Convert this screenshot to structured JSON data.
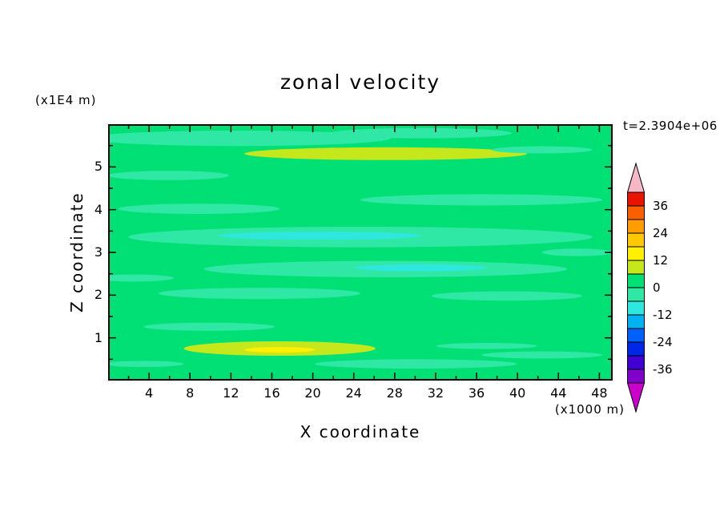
{
  "chart_data": {
    "type": "heatmap",
    "title": "zonal velocity",
    "xlabel": "X coordinate",
    "ylabel": "Z coordinate",
    "x_unit": "(x1000 m)",
    "y_unit": "(x1E4 m)",
    "time": "t=2.3904e+06",
    "xlim": [
      0,
      49.3
    ],
    "ylim": [
      0,
      6
    ],
    "x_ticks": [
      4,
      8,
      12,
      16,
      20,
      24,
      28,
      32,
      36,
      40,
      44,
      48
    ],
    "y_ticks": [
      1,
      2,
      3,
      4,
      5
    ],
    "x_minor_step": 2,
    "y_minor_step": 0.5,
    "grid": false,
    "legend_position": "right-colorbar",
    "base_color": "#00e074",
    "colorbar": {
      "over_color": "#f5b8c4",
      "under_color": "#cc00cc",
      "labels": [
        36,
        24,
        12,
        0,
        -12,
        -24,
        -36
      ],
      "segments": [
        {
          "from": 36,
          "to": 42,
          "color": "#e81400"
        },
        {
          "from": 30,
          "to": 36,
          "color": "#fa5f00"
        },
        {
          "from": 24,
          "to": 30,
          "color": "#ff9c00"
        },
        {
          "from": 18,
          "to": 24,
          "color": "#ffc800"
        },
        {
          "from": 12,
          "to": 18,
          "color": "#fef000"
        },
        {
          "from": 6,
          "to": 12,
          "color": "#c4e81c"
        },
        {
          "from": 0,
          "to": 6,
          "color": "#00e074"
        },
        {
          "from": -6,
          "to": 0,
          "color": "#30e8a6"
        },
        {
          "from": -12,
          "to": -6,
          "color": "#2ee8e0"
        },
        {
          "from": -18,
          "to": -12,
          "color": "#00b2f2"
        },
        {
          "from": -24,
          "to": -18,
          "color": "#0060fa"
        },
        {
          "from": -30,
          "to": -24,
          "color": "#0026e8"
        },
        {
          "from": -36,
          "to": -30,
          "color": "#4000d4"
        },
        {
          "from": -42,
          "to": -36,
          "color": "#8000cc"
        }
      ]
    },
    "streaks": [
      {
        "x": 0.26,
        "y": 0.055,
        "rx": 0.3,
        "ry": 0.03,
        "v": -3
      },
      {
        "x": 0.62,
        "y": 0.035,
        "rx": 0.18,
        "ry": 0.02,
        "v": -3
      },
      {
        "x": 0.55,
        "y": 0.115,
        "rx": 0.28,
        "ry": 0.025,
        "v": 9
      },
      {
        "x": 0.86,
        "y": 0.1,
        "rx": 0.1,
        "ry": 0.014,
        "v": -3
      },
      {
        "x": 0.12,
        "y": 0.2,
        "rx": 0.12,
        "ry": 0.018,
        "v": -3
      },
      {
        "x": 0.74,
        "y": 0.295,
        "rx": 0.24,
        "ry": 0.022,
        "v": -3
      },
      {
        "x": 0.18,
        "y": 0.33,
        "rx": 0.16,
        "ry": 0.02,
        "v": -3
      },
      {
        "x": 0.5,
        "y": 0.44,
        "rx": 0.46,
        "ry": 0.04,
        "v": -3
      },
      {
        "x": 0.42,
        "y": 0.435,
        "rx": 0.2,
        "ry": 0.016,
        "v": -9
      },
      {
        "x": 0.55,
        "y": 0.565,
        "rx": 0.36,
        "ry": 0.032,
        "v": -3
      },
      {
        "x": 0.62,
        "y": 0.56,
        "rx": 0.13,
        "ry": 0.013,
        "v": -9
      },
      {
        "x": 0.3,
        "y": 0.66,
        "rx": 0.2,
        "ry": 0.022,
        "v": -3
      },
      {
        "x": 0.79,
        "y": 0.67,
        "rx": 0.15,
        "ry": 0.018,
        "v": -3
      },
      {
        "x": 0.93,
        "y": 0.5,
        "rx": 0.07,
        "ry": 0.015,
        "v": -3
      },
      {
        "x": 0.05,
        "y": 0.6,
        "rx": 0.08,
        "ry": 0.014,
        "v": -3
      },
      {
        "x": 0.2,
        "y": 0.79,
        "rx": 0.13,
        "ry": 0.016,
        "v": -3
      },
      {
        "x": 0.34,
        "y": 0.875,
        "rx": 0.19,
        "ry": 0.028,
        "v": 9
      },
      {
        "x": 0.34,
        "y": 0.88,
        "rx": 0.07,
        "ry": 0.011,
        "v": 15
      },
      {
        "x": 0.61,
        "y": 0.935,
        "rx": 0.2,
        "ry": 0.018,
        "v": -3
      },
      {
        "x": 0.86,
        "y": 0.9,
        "rx": 0.12,
        "ry": 0.014,
        "v": -3
      },
      {
        "x": 0.07,
        "y": 0.935,
        "rx": 0.08,
        "ry": 0.012,
        "v": -3
      },
      {
        "x": 0.75,
        "y": 0.865,
        "rx": 0.1,
        "ry": 0.012,
        "v": -3
      }
    ]
  }
}
